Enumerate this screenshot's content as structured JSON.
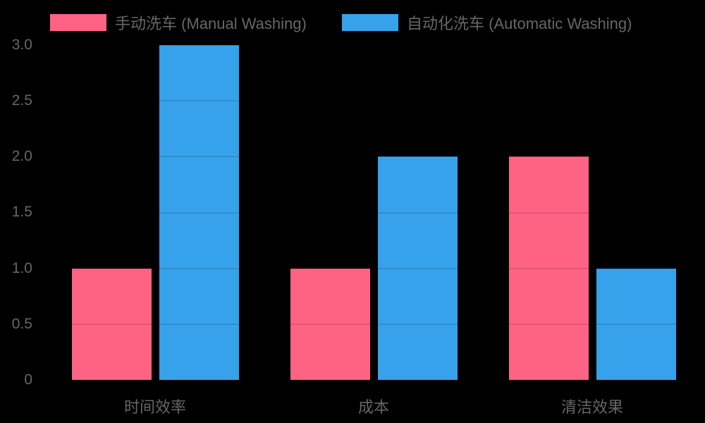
{
  "chart_data": {
    "type": "bar",
    "title": "",
    "xlabel": "",
    "ylabel": "",
    "categories": [
      "时间效率",
      "成本",
      "清洁效果"
    ],
    "series": [
      {
        "name": "手动洗车 (Manual Washing)",
        "color": "#FF6384",
        "values": [
          1,
          1,
          2
        ]
      },
      {
        "name": "自动化洗车 (Automatic Washing)",
        "color": "#36A2EB",
        "values": [
          3,
          2,
          1
        ]
      }
    ],
    "ylim": [
      0,
      3
    ],
    "yticks": [
      "0",
      "0.5",
      "1.0",
      "1.5",
      "2.0",
      "2.5",
      "3.0"
    ],
    "grid": true,
    "legend_position": "top"
  },
  "legend": {
    "items": [
      {
        "label": "手动洗车 (Manual Washing)",
        "color": "#FF6384"
      },
      {
        "label": "自动化洗车 (Automatic Washing)",
        "color": "#36A2EB"
      }
    ]
  },
  "background": "#000000"
}
